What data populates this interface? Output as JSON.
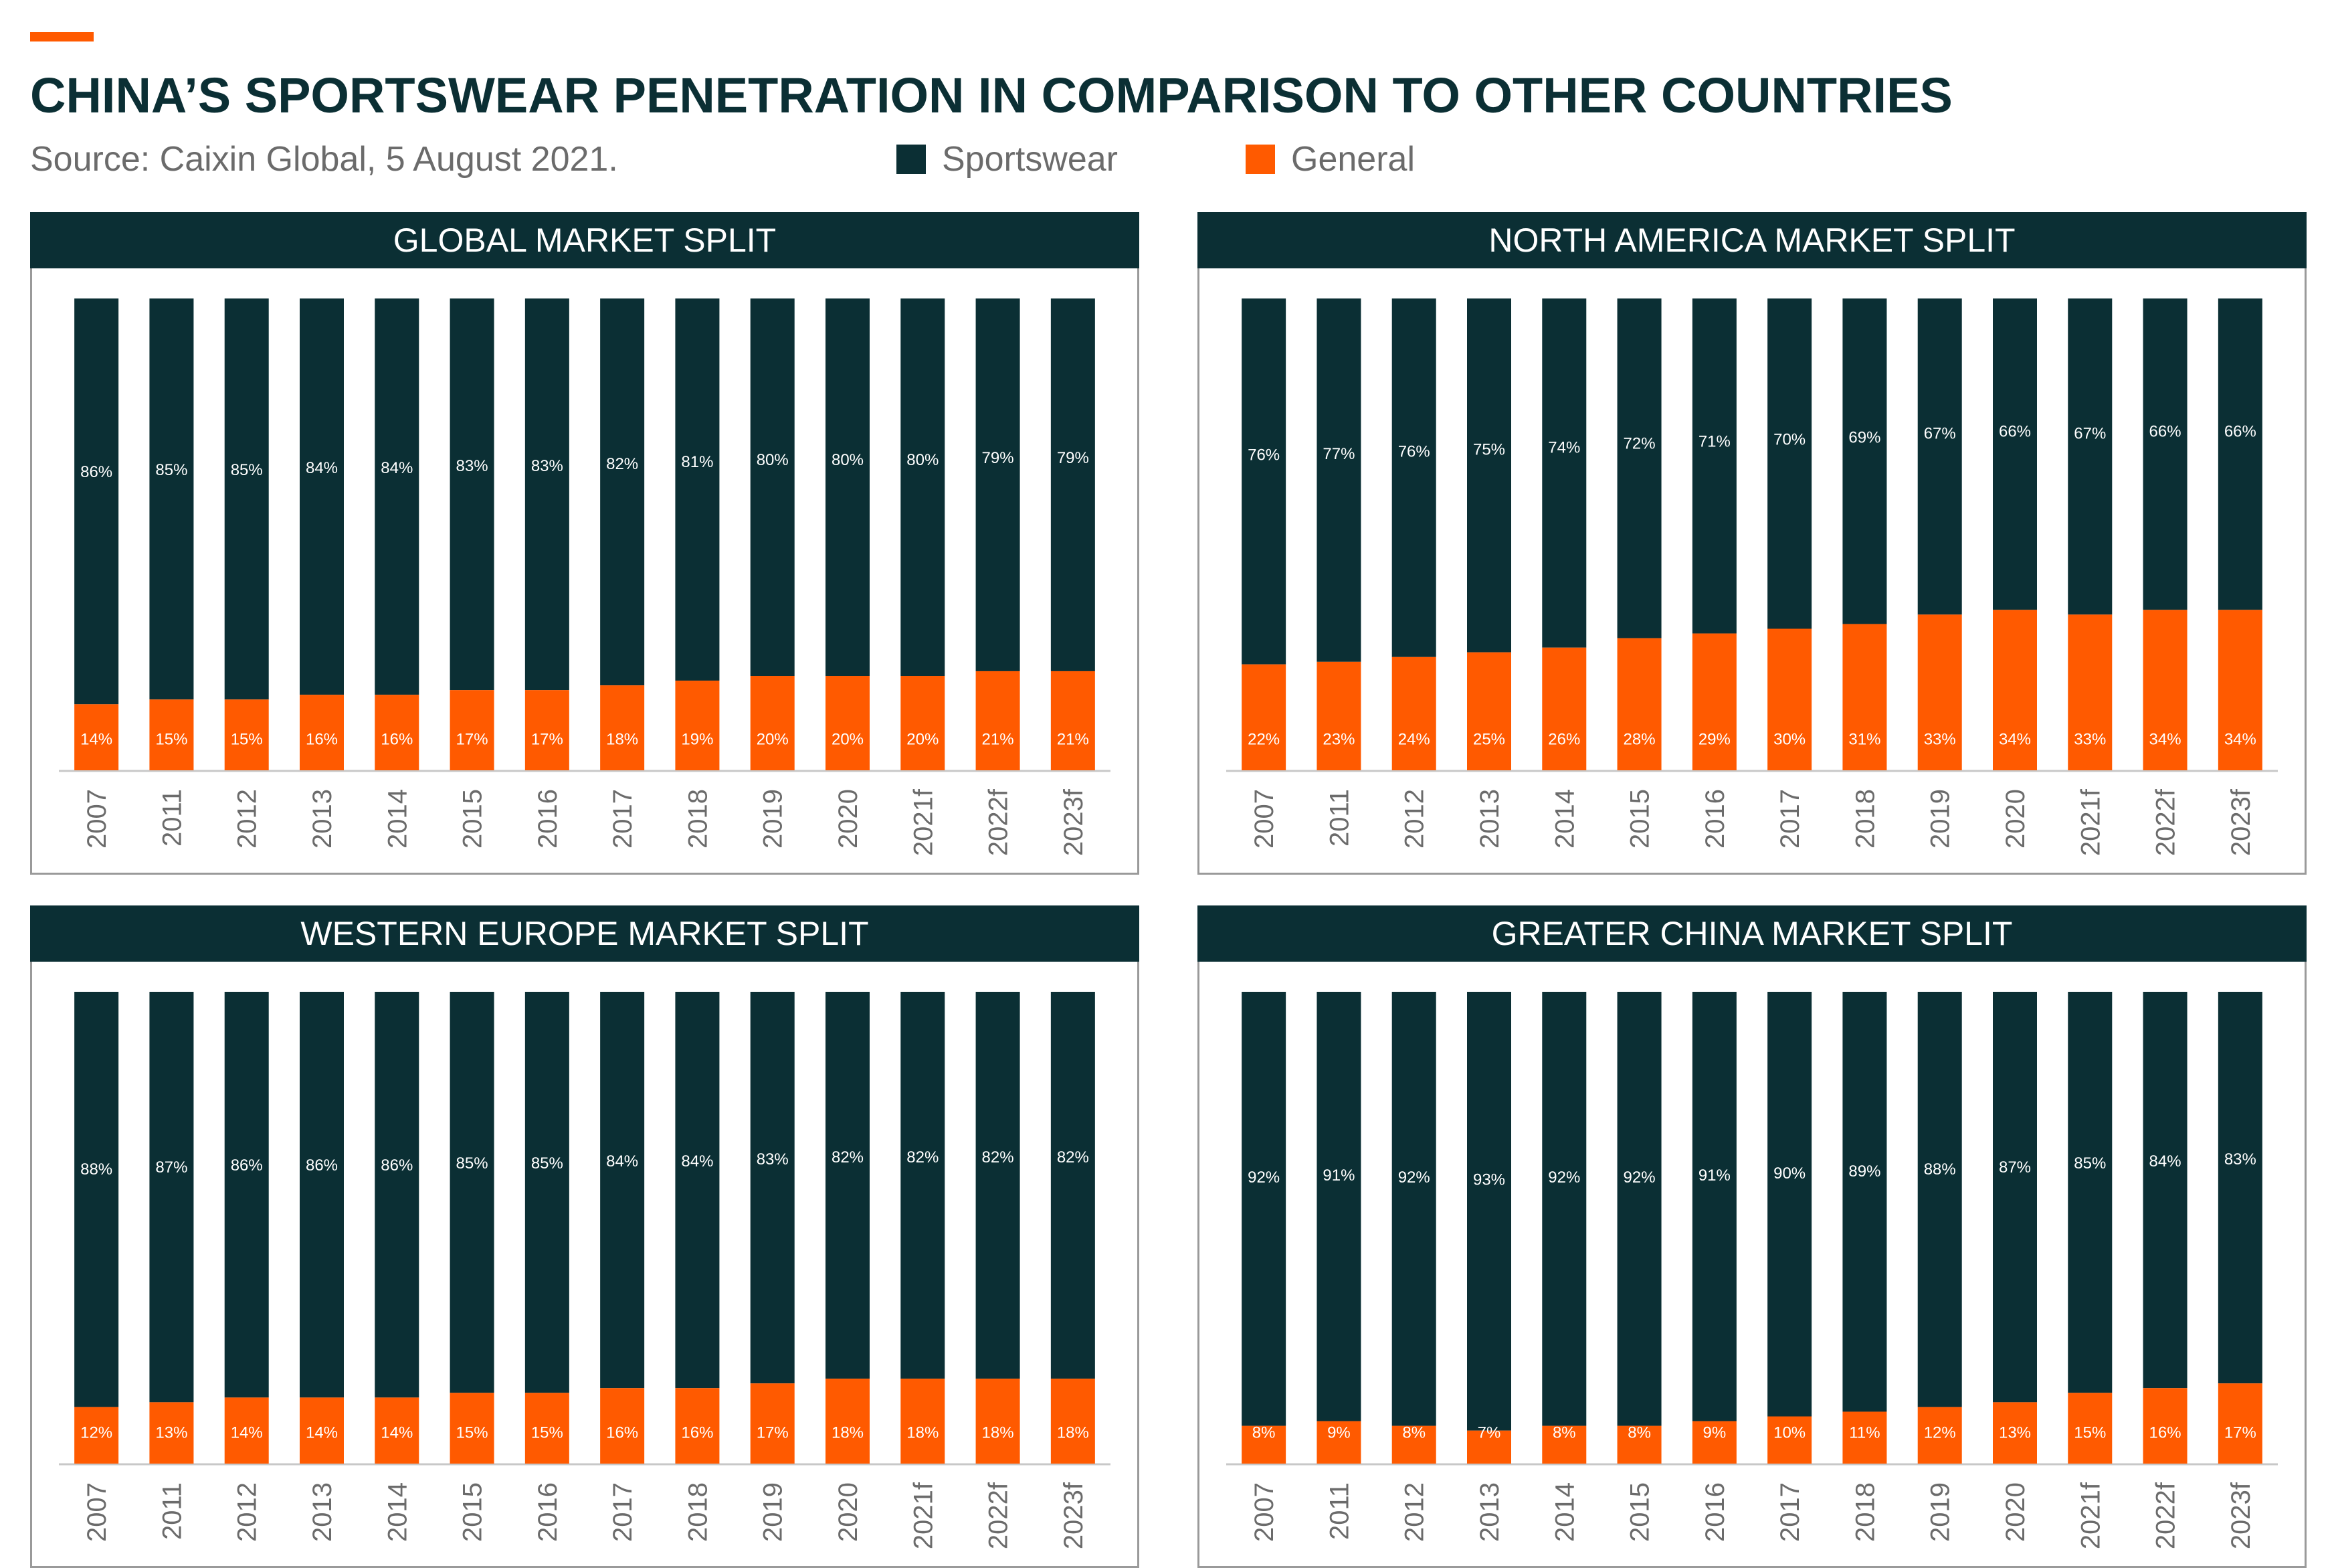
{
  "header": {
    "title": "CHINA’S SPORTSWEAR PENETRATION IN COMPARISON TO OTHER COUNTRIES",
    "source": "Source: Caixin Global, 5 August 2021."
  },
  "legend": {
    "sportswear": "Sportswear",
    "general": "General"
  },
  "colors": {
    "sportswear": "#0b2f34",
    "general": "#ff5a00",
    "accent": "#ff5a00"
  },
  "chart_data": [
    {
      "type": "bar",
      "stacked": true,
      "title": "GLOBAL MARKET SPLIT",
      "categories": [
        "2007",
        "2011",
        "2012",
        "2013",
        "2014",
        "2015",
        "2016",
        "2017",
        "2018",
        "2019",
        "2020",
        "2021f",
        "2022f",
        "2023f"
      ],
      "series": [
        {
          "name": "Sportswear",
          "values": [
            86,
            85,
            85,
            84,
            84,
            83,
            83,
            82,
            81,
            80,
            80,
            80,
            79,
            79
          ]
        },
        {
          "name": "General",
          "values": [
            14,
            15,
            15,
            16,
            16,
            17,
            17,
            18,
            19,
            20,
            20,
            20,
            21,
            21
          ]
        }
      ],
      "ylim": [
        0,
        100
      ]
    },
    {
      "type": "bar",
      "stacked": true,
      "title": "NORTH AMERICA MARKET SPLIT",
      "categories": [
        "2007",
        "2011",
        "2012",
        "2013",
        "2014",
        "2015",
        "2016",
        "2017",
        "2018",
        "2019",
        "2020",
        "2021f",
        "2022f",
        "2023f"
      ],
      "series": [
        {
          "name": "Sportswear",
          "values": [
            76,
            77,
            76,
            75,
            74,
            72,
            71,
            70,
            69,
            67,
            66,
            67,
            66,
            66
          ]
        },
        {
          "name": "General",
          "values": [
            22,
            23,
            24,
            25,
            26,
            28,
            29,
            30,
            31,
            33,
            34,
            33,
            34,
            34
          ]
        }
      ],
      "ylim": [
        0,
        100
      ]
    },
    {
      "type": "bar",
      "stacked": true,
      "title": "WESTERN EUROPE MARKET SPLIT",
      "categories": [
        "2007",
        "2011",
        "2012",
        "2013",
        "2014",
        "2015",
        "2016",
        "2017",
        "2018",
        "2019",
        "2020",
        "2021f",
        "2022f",
        "2023f"
      ],
      "series": [
        {
          "name": "Sportswear",
          "values": [
            88,
            87,
            86,
            86,
            86,
            85,
            85,
            84,
            84,
            83,
            82,
            82,
            82,
            82
          ]
        },
        {
          "name": "General",
          "values": [
            12,
            13,
            14,
            14,
            14,
            15,
            15,
            16,
            16,
            17,
            18,
            18,
            18,
            18
          ]
        }
      ],
      "ylim": [
        0,
        100
      ]
    },
    {
      "type": "bar",
      "stacked": true,
      "title": "GREATER CHINA MARKET SPLIT",
      "categories": [
        "2007",
        "2011",
        "2012",
        "2013",
        "2014",
        "2015",
        "2016",
        "2017",
        "2018",
        "2019",
        "2020",
        "2021f",
        "2022f",
        "2023f"
      ],
      "series": [
        {
          "name": "Sportswear",
          "values": [
            92,
            91,
            92,
            93,
            92,
            92,
            91,
            90,
            89,
            88,
            87,
            85,
            84,
            83
          ]
        },
        {
          "name": "General",
          "values": [
            8,
            9,
            8,
            7,
            8,
            8,
            9,
            10,
            11,
            12,
            13,
            15,
            16,
            17
          ]
        }
      ],
      "ylim": [
        0,
        100
      ]
    }
  ]
}
